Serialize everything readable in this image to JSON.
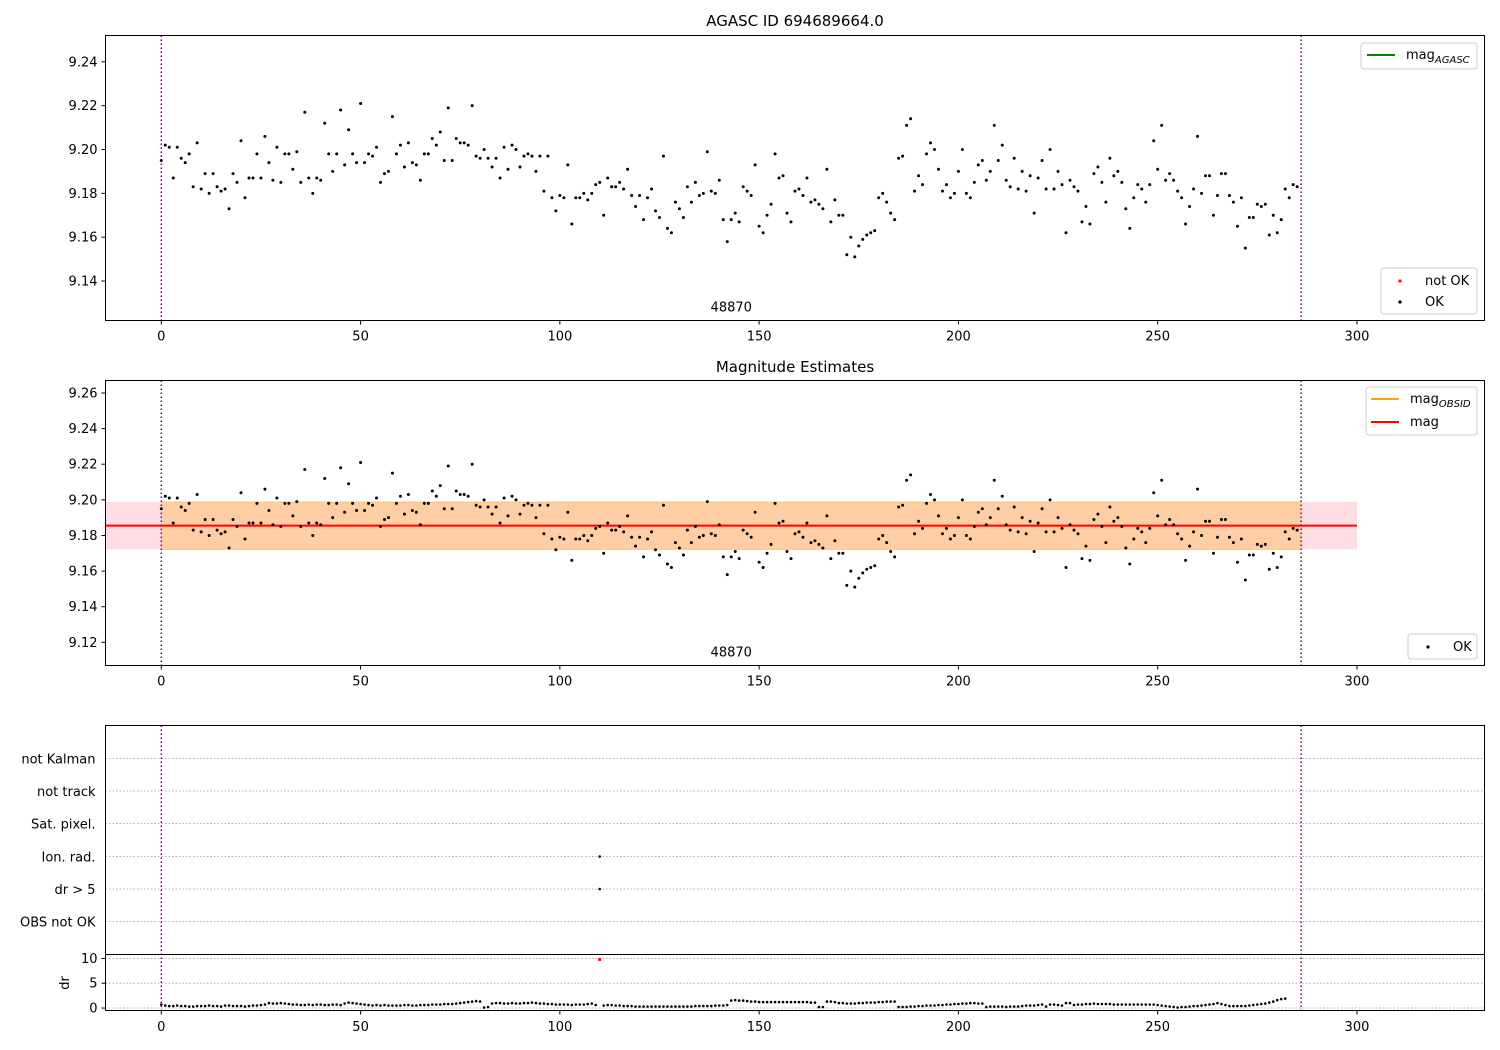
{
  "chart_data": [
    {
      "type": "scatter",
      "title": "AGASC ID 694689664.0",
      "xlim": [
        -14,
        332
      ],
      "ylim": [
        9.122,
        9.252
      ],
      "xticks": [
        0,
        50,
        100,
        150,
        200,
        250,
        300
      ],
      "yticks": [
        9.14,
        9.16,
        9.18,
        9.2,
        9.22,
        9.24
      ],
      "grid": false,
      "obsid_boundaries": [
        0,
        286
      ],
      "obsid_label": "48870",
      "obsid_label_x": 143,
      "series": [
        {
          "name": "OK",
          "color": "#000000"
        },
        {
          "name": "not OK",
          "color": "#ff0000"
        }
      ],
      "legend_lines": [
        {
          "name": "mag",
          "sub": "AGASC",
          "color": "#008000"
        }
      ],
      "legend_points": [
        {
          "name": "not OK",
          "color": "#ff0000"
        },
        {
          "name": "OK",
          "color": "#000000"
        }
      ],
      "legend_placement": "top-right (lines), bottom-right (points)"
    },
    {
      "type": "scatter",
      "title": "Magnitude Estimates",
      "xlim": [
        -14,
        332
      ],
      "ylim": [
        9.107,
        9.267
      ],
      "xticks": [
        0,
        50,
        100,
        150,
        200,
        250,
        300
      ],
      "yticks": [
        9.12,
        9.14,
        9.16,
        9.18,
        9.2,
        9.22,
        9.24,
        9.26
      ],
      "grid": false,
      "obsid_boundaries": [
        0,
        286
      ],
      "obsid_label": "48870",
      "obsid_label_x": 143,
      "mag_level": 9.1855,
      "mag_band": {
        "x": [
          -14,
          300
        ],
        "y": [
          9.1722,
          9.1988
        ],
        "color": "#ffb6c1"
      },
      "obsid_band": {
        "x": [
          0,
          286
        ],
        "y": [
          9.1722,
          9.1988
        ],
        "color": "#ffa500"
      },
      "legend_lines": [
        {
          "name": "mag",
          "sub": "OBSID",
          "color": "#ffa500"
        },
        {
          "name": "mag",
          "sub": "",
          "color": "#ff0000"
        }
      ],
      "legend_points": [
        {
          "name": "OK",
          "color": "#000000"
        }
      ],
      "legend_placement": "top-right (lines), bottom-right (points)"
    },
    {
      "type": "scatter",
      "title": "",
      "xlim": [
        -14,
        332
      ],
      "flag_categories": [
        "not Kalman",
        "not track",
        "Sat. pixel.",
        "Ion. rad.",
        "dr > 5",
        "OBS not OK"
      ],
      "flag_points": [
        {
          "x": 110,
          "category": "Ion. rad."
        },
        {
          "x": 110,
          "category": "dr > 5"
        }
      ],
      "ylabel": "dr",
      "dr_ylim": [
        -0.5,
        10.8
      ],
      "dr_yticks": [
        0,
        5,
        10
      ],
      "xticks": [
        0,
        50,
        100,
        150,
        200,
        250,
        300
      ],
      "grid": true,
      "obsid_boundaries": [
        0,
        286
      ],
      "dr_outliers": [
        {
          "x": 110,
          "y": 9.8,
          "color": "#ff0000"
        }
      ]
    }
  ],
  "measurements": {
    "n_points": 287,
    "mag": [
      9.195,
      9.202,
      9.201,
      9.187,
      9.201,
      9.196,
      9.194,
      9.198,
      9.183,
      9.203,
      9.182,
      9.189,
      9.18,
      9.189,
      9.183,
      9.181,
      9.182,
      9.173,
      9.189,
      9.185,
      9.204,
      9.178,
      9.187,
      9.187,
      9.198,
      9.187,
      9.206,
      9.194,
      9.186,
      9.201,
      9.185,
      9.198,
      9.198,
      9.191,
      9.199,
      9.185,
      9.217,
      9.187,
      9.18,
      9.187,
      9.186,
      9.212,
      9.198,
      9.19,
      9.198,
      9.218,
      9.193,
      9.209,
      9.198,
      9.194,
      9.221,
      9.194,
      9.198,
      9.197,
      9.201,
      9.185,
      9.189,
      9.19,
      9.215,
      9.198,
      9.202,
      9.192,
      9.203,
      9.194,
      9.193,
      9.186,
      9.198,
      9.198,
      9.205,
      9.202,
      9.208,
      9.195,
      9.219,
      9.195,
      9.205,
      9.203,
      9.203,
      9.202,
      9.22,
      9.197,
      9.196,
      9.2,
      9.196,
      9.192,
      9.196,
      9.187,
      9.201,
      9.191,
      9.202,
      9.2,
      9.192,
      9.197,
      9.198,
      9.197,
      9.19,
      9.197,
      9.181,
      9.197,
      9.178,
      9.172,
      9.179,
      9.178,
      9.193,
      9.166,
      9.178,
      9.178,
      9.18,
      9.177,
      9.18,
      9.184,
      9.185,
      9.17,
      9.187,
      9.183,
      9.183,
      9.185,
      9.182,
      9.191,
      9.179,
      9.174,
      9.179,
      9.168,
      9.178,
      9.182,
      9.172,
      9.169,
      9.197,
      9.164,
      9.162,
      9.176,
      9.173,
      9.169,
      9.183,
      9.176,
      9.185,
      9.179,
      9.18,
      9.199,
      9.181,
      9.18,
      9.186,
      9.168,
      9.158,
      9.168,
      9.171,
      9.167,
      9.183,
      9.181,
      9.179,
      9.193,
      9.165,
      9.162,
      9.17,
      9.175,
      9.198,
      9.187,
      9.188,
      9.171,
      9.167,
      9.181,
      9.182,
      9.179,
      9.187,
      9.176,
      9.177,
      9.175,
      9.173,
      9.191,
      9.167,
      9.177,
      9.17,
      9.17,
      9.152,
      9.16,
      9.151,
      9.156,
      9.159,
      9.161,
      9.162,
      9.163,
      9.178,
      9.18,
      9.176,
      9.171,
      9.168,
      9.196,
      9.197,
      9.211,
      9.214,
      9.181,
      9.188,
      9.184,
      9.198,
      9.203,
      9.2,
      9.191,
      9.181,
      9.184,
      9.178,
      9.18,
      9.19,
      9.2,
      9.18,
      9.178,
      9.185,
      9.193,
      9.195,
      9.186,
      9.19,
      9.211,
      9.195,
      9.202,
      9.186,
      9.183,
      9.196,
      9.182,
      9.19,
      9.181,
      9.188,
      9.171,
      9.187,
      9.195,
      9.182,
      9.2,
      9.182,
      9.19,
      9.184,
      9.162,
      9.186,
      9.183,
      9.181,
      9.167,
      9.174,
      9.166,
      9.189,
      9.192,
      9.185,
      9.176,
      9.196,
      9.188,
      9.19,
      9.185,
      9.173,
      9.164,
      9.178,
      9.184,
      9.182,
      9.176,
      9.184,
      9.204,
      9.191,
      9.211,
      9.186,
      9.189,
      9.186,
      9.181,
      9.178,
      9.166,
      9.174,
      9.182,
      9.206,
      9.18,
      9.188,
      9.188,
      9.17,
      9.179,
      9.189,
      9.189,
      9.179,
      9.176,
      9.165,
      9.178,
      9.155,
      9.169,
      9.169,
      9.175,
      9.174,
      9.175,
      9.161,
      9.17,
      9.162,
      9.168,
      9.182,
      9.178,
      9.184,
      9.183
    ],
    "dr": [
      0.7,
      0.5,
      0.4,
      0.4,
      0.5,
      0.4,
      0.4,
      0.3,
      0.3,
      0.4,
      0.4,
      0.4,
      0.5,
      0.4,
      0.4,
      0.3,
      0.5,
      0.5,
      0.4,
      0.4,
      0.4,
      0.3,
      0.4,
      0.5,
      0.5,
      0.6,
      0.7,
      1.0,
      0.9,
      0.9,
      1.0,
      0.9,
      0.8,
      0.7,
      0.7,
      0.6,
      0.6,
      0.7,
      0.6,
      0.7,
      0.7,
      0.6,
      0.6,
      0.7,
      0.7,
      0.6,
      0.9,
      1.1,
      1.0,
      0.9,
      0.8,
      0.7,
      0.6,
      0.5,
      0.6,
      0.5,
      0.6,
      0.5,
      0.5,
      0.5,
      0.5,
      0.6,
      0.6,
      0.5,
      0.5,
      0.6,
      0.6,
      0.6,
      0.7,
      0.7,
      0.7,
      0.8,
      0.8,
      0.8,
      0.9,
      1.0,
      1.1,
      1.2,
      1.3,
      1.4,
      1.3,
      0.1,
      0.2,
      0.9,
      1.0,
      1.0,
      0.9,
      0.9,
      1.0,
      0.9,
      0.9,
      1.0,
      1.0,
      1.1,
      1.0,
      0.9,
      0.9,
      0.8,
      0.8,
      0.7,
      0.7,
      0.7,
      0.7,
      0.6,
      0.7,
      0.7,
      0.7,
      0.8,
      0.9,
      0.6,
      9.8,
      0.5,
      0.6,
      0.6,
      0.5,
      0.5,
      0.4,
      0.4,
      0.4,
      0.3,
      0.3,
      0.3,
      0.3,
      0.3,
      0.3,
      0.3,
      0.3,
      0.3,
      0.3,
      0.3,
      0.3,
      0.3,
      0.3,
      0.3,
      0.4,
      0.4,
      0.4,
      0.4,
      0.4,
      0.5,
      0.5,
      0.5,
      0.6,
      1.5,
      1.6,
      1.5,
      1.5,
      1.4,
      1.3,
      1.3,
      1.2,
      1.2,
      1.2,
      1.2,
      1.2,
      1.2,
      1.2,
      1.2,
      1.2,
      1.2,
      1.2,
      1.2,
      1.2,
      1.1,
      1.1,
      0.2,
      0.2,
      1.3,
      1.3,
      1.2,
      1.0,
      1.0,
      0.9,
      0.9,
      0.9,
      1.0,
      1.0,
      1.1,
      1.1,
      1.1,
      1.2,
      1.2,
      1.3,
      1.3,
      1.3,
      0.2,
      0.2,
      0.2,
      0.3,
      0.3,
      0.4,
      0.4,
      0.5,
      0.5,
      0.5,
      0.6,
      0.6,
      0.7,
      0.7,
      0.8,
      0.8,
      0.9,
      0.9,
      1.0,
      1.0,
      0.9,
      0.9,
      0.2,
      0.3,
      0.3,
      0.3,
      0.3,
      0.2,
      0.3,
      0.3,
      0.3,
      0.4,
      0.5,
      0.5,
      0.5,
      0.6,
      0.7,
      0.3,
      0.7,
      0.7,
      0.6,
      0.5,
      1.0,
      1.0,
      0.6,
      0.7,
      0.7,
      0.8,
      0.8,
      0.9,
      0.8,
      0.8,
      0.8,
      0.8,
      0.7,
      0.7,
      0.7,
      0.7,
      0.7,
      0.7,
      0.7,
      0.7,
      0.7,
      0.7,
      0.7,
      0.6,
      0.5,
      0.4,
      0.3,
      0.2,
      0.1,
      0.2,
      0.2,
      0.3,
      0.4,
      0.4,
      0.5,
      0.6,
      0.7,
      0.8,
      1.0,
      0.8,
      0.6,
      0.4,
      0.4,
      0.4,
      0.4,
      0.4,
      0.5,
      0.6,
      0.7,
      0.8,
      0.9,
      1.1,
      1.3,
      1.6,
      1.8,
      1.9
    ]
  }
}
